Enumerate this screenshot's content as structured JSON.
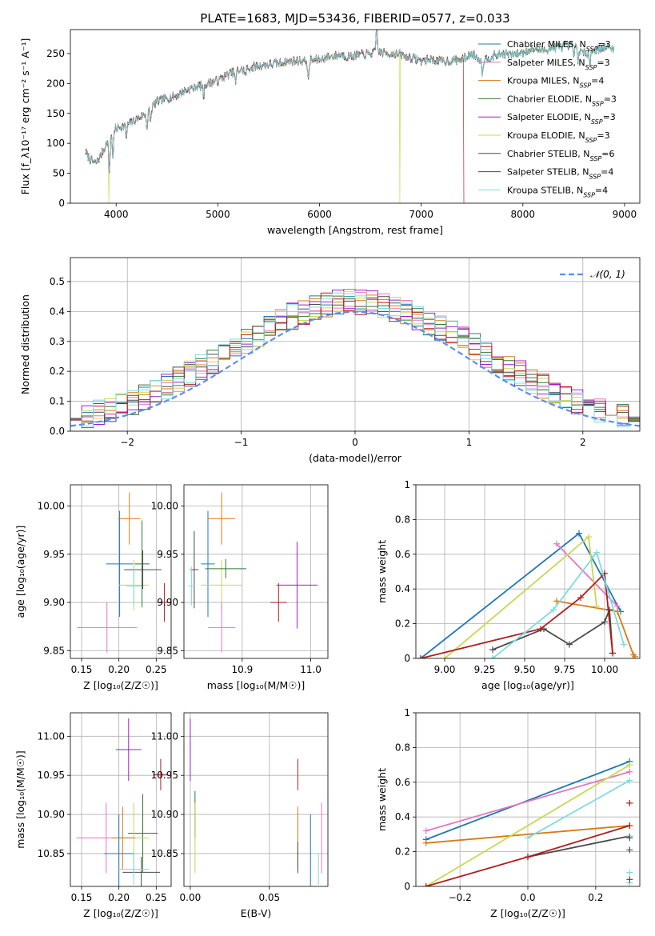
{
  "title": "PLATE=1683, MJD=53436, FIBERID=0577, z=0.033",
  "colors": {
    "Chabrier MILES": "#1f77b4",
    "Salpeter MILES": "#e377c2",
    "Kroupa MILES": "#d97a15",
    "Chabrier ELODIE": "#2d7a30",
    "Salpeter ELODIE": "#9b1fc7",
    "Kroupa ELODIE": "#c8d850",
    "Chabrier STELIB": "#4a4a4a",
    "Salpeter STELIB": "#b01e1e",
    "Kroupa STELIB": "#7fdbe0"
  },
  "chart_data": [
    {
      "id": "spectrum",
      "type": "line",
      "xlabel": "wavelength [Angstrom, rest frame]",
      "ylabel": "Flux [f_λ10⁻¹⁷ erg cm⁻² s⁻¹ A⁻¹]",
      "xlim": [
        3550,
        9150
      ],
      "ylim": [
        0,
        290
      ],
      "xticks": [
        4000,
        5000,
        6000,
        7000,
        8000,
        9000
      ],
      "yticks": [
        0,
        50,
        100,
        150,
        200,
        250
      ],
      "grid": false,
      "legend_position": "top-right",
      "series": [
        {
          "name": "Chabrier MILES, N_SSP=3"
        },
        {
          "name": "Salpeter MILES, N_SSP=3"
        },
        {
          "name": "Kroupa MILES, N_SSP=4"
        },
        {
          "name": "Chabrier ELODIE, N_SSP=3"
        },
        {
          "name": "Salpeter ELODIE, N_SSP=3"
        },
        {
          "name": "Kroupa ELODIE, N_SSP=3"
        },
        {
          "name": "Chabrier STELIB, N_SSP=6"
        },
        {
          "name": "Salpeter STELIB, N_SSP=4"
        },
        {
          "name": "Kroupa STELIB, N_SSP=4"
        }
      ],
      "continuum": [
        [
          3700,
          85
        ],
        [
          3750,
          72
        ],
        [
          3800,
          66
        ],
        [
          3850,
          80
        ],
        [
          3900,
          98
        ],
        [
          3950,
          115
        ],
        [
          4000,
          125
        ],
        [
          4100,
          130
        ],
        [
          4200,
          140
        ],
        [
          4300,
          150
        ],
        [
          4400,
          170
        ],
        [
          4500,
          175
        ],
        [
          4600,
          180
        ],
        [
          4700,
          190
        ],
        [
          4800,
          195
        ],
        [
          4900,
          200
        ],
        [
          5000,
          205
        ],
        [
          5100,
          215
        ],
        [
          5200,
          222
        ],
        [
          5300,
          225
        ],
        [
          5400,
          230
        ],
        [
          5500,
          232
        ],
        [
          5600,
          234
        ],
        [
          5700,
          237
        ],
        [
          5800,
          238
        ],
        [
          5900,
          238
        ],
        [
          6000,
          240
        ],
        [
          6100,
          245
        ],
        [
          6200,
          248
        ],
        [
          6300,
          245
        ],
        [
          6400,
          248
        ],
        [
          6500,
          250
        ],
        [
          6600,
          252
        ],
        [
          6700,
          250
        ],
        [
          6800,
          248
        ],
        [
          6900,
          243
        ],
        [
          7000,
          238
        ],
        [
          7100,
          240
        ],
        [
          7200,
          237
        ],
        [
          7300,
          238
        ],
        [
          7400,
          240
        ],
        [
          7500,
          250
        ],
        [
          7600,
          238
        ],
        [
          7700,
          245
        ],
        [
          7800,
          250
        ],
        [
          7900,
          248
        ],
        [
          8000,
          252
        ],
        [
          8100,
          258
        ],
        [
          8200,
          255
        ],
        [
          8300,
          260
        ],
        [
          8400,
          262
        ],
        [
          8500,
          263
        ],
        [
          8600,
          250
        ],
        [
          8700,
          255
        ],
        [
          8800,
          260
        ],
        [
          8900,
          258
        ]
      ],
      "absorption_lines": [
        [
          3933,
          60
        ],
        [
          3968,
          40
        ],
        [
          4101,
          20
        ],
        [
          4304,
          25
        ],
        [
          4340,
          20
        ],
        [
          4861,
          20
        ],
        [
          5175,
          20
        ],
        [
          5270,
          12
        ],
        [
          5890,
          35
        ],
        [
          6563,
          -55
        ],
        [
          7600,
          20
        ],
        [
          8500,
          15
        ],
        [
          8542,
          18
        ],
        [
          8662,
          18
        ]
      ],
      "cutoffs": [
        {
          "series": "Kroupa ELODIE, N_SSP=3",
          "x": 3930
        },
        {
          "series": "Kroupa ELODIE, N_SSP=3",
          "x": 6790
        },
        {
          "series": "Salpeter STELIB, N_SSP=4",
          "x": 7420
        }
      ]
    },
    {
      "id": "residuals",
      "type": "histogram",
      "xlabel": "(data-model)/error",
      "ylabel": "Normed distribution",
      "xlim": [
        -2.5,
        2.5
      ],
      "ylim": [
        0,
        0.58
      ],
      "xticks": [
        -2,
        -1,
        0,
        1,
        2
      ],
      "yticks": [
        0.0,
        0.1,
        0.2,
        0.3,
        0.4,
        0.5
      ],
      "grid": true,
      "legend_position": "top-right",
      "reference_curve": {
        "name": "𝒩(0, 1)",
        "mean": 0,
        "sigma": 1,
        "style": "dashed",
        "color": "#5b8def"
      },
      "bin_width": 0.1
    },
    {
      "id": "z_vs_age",
      "type": "errorbar",
      "xlabel": "Z [log₁₀(Z/Z☉)]",
      "ylabel": "age  [log₁₀(age/yr)]",
      "xlim": [
        0.135,
        0.27
      ],
      "ylim": [
        9.842,
        10.022
      ],
      "xticks": [
        0.15,
        0.2,
        0.25
      ],
      "xtick_labels": [
        "0.15",
        "0.20",
        "0.25"
      ],
      "yticks": [
        9.85,
        9.9,
        9.95,
        10.0
      ],
      "ytick_labels": [
        "9.85",
        "9.90",
        "9.95",
        "10.00"
      ],
      "grid": true,
      "points": [
        {
          "series": "Chabrier MILES",
          "x": 0.201,
          "y": 9.94,
          "xerr": 0.018,
          "yerr": 0.055
        },
        {
          "series": "Kroupa MILES",
          "x": 0.214,
          "y": 9.987,
          "xerr": 0.015,
          "yerr": 0.027
        },
        {
          "series": "Salpeter MILES",
          "x": 0.184,
          "y": 9.874,
          "xerr": 0.04,
          "yerr": 0.026
        },
        {
          "series": "Kroupa ELODIE",
          "x": 0.22,
          "y": 9.918,
          "xerr": 0.02,
          "yerr": 0.026
        },
        {
          "series": "Chabrier ELODIE",
          "x": 0.231,
          "y": 9.94,
          "xerr": 0.01,
          "yerr": 0.045
        },
        {
          "series": "Chabrier STELIB",
          "x": 0.232,
          "y": 9.934,
          "xerr": 0.025,
          "yerr": 0.02
        },
        {
          "series": "Salpeter STELIB",
          "x": 0.261,
          "y": 9.9,
          "xerr": 0.01,
          "yerr": 0.02
        },
        {
          "series": "Kroupa STELIB",
          "x": 0.22,
          "y": 9.917,
          "xerr": 0.01,
          "yerr": 0.02
        }
      ]
    },
    {
      "id": "mass_vs_age",
      "type": "errorbar",
      "xlabel": "mass [log₁₀(M/M☉)]",
      "ylabel": "",
      "xlim": [
        10.815,
        11.025
      ],
      "ylim": [
        9.842,
        10.022
      ],
      "xticks": [
        10.9,
        11.0
      ],
      "xtick_labels": [
        "10.9",
        "11.0"
      ],
      "yticks": [
        9.85,
        9.9,
        9.95,
        10.0
      ],
      "ytick_labels": [
        "9.85",
        "9.90",
        "9.95",
        "10.00"
      ],
      "grid": true,
      "points": [
        {
          "series": "Chabrier STELIB",
          "x": 10.83,
          "y": 9.934,
          "xerr": 0.006,
          "yerr": 0.04
        },
        {
          "series": "Chabrier MILES",
          "x": 10.85,
          "y": 9.94,
          "xerr": 0.01,
          "yerr": 0.055
        },
        {
          "series": "Kroupa MILES",
          "x": 10.87,
          "y": 9.987,
          "xerr": 0.02,
          "yerr": 0.027
        },
        {
          "series": "Kroupa ELODIE",
          "x": 10.87,
          "y": 9.918,
          "xerr": 0.03,
          "yerr": 0.026
        },
        {
          "series": "Chabrier ELODIE",
          "x": 10.876,
          "y": 9.935,
          "xerr": 0.03,
          "yerr": 0.01
        },
        {
          "series": "Salpeter MILES",
          "x": 10.87,
          "y": 9.874,
          "xerr": 0.02,
          "yerr": 0.026
        },
        {
          "series": "Salpeter STELIB",
          "x": 10.953,
          "y": 9.9,
          "xerr": 0.012,
          "yerr": 0.02
        },
        {
          "series": "Salpeter ELODIE",
          "x": 10.98,
          "y": 9.918,
          "xerr": 0.03,
          "yerr": 0.045
        },
        {
          "series": "Kroupa STELIB",
          "x": 10.826,
          "y": 9.917,
          "xerr": 0.005,
          "yerr": 0.02
        }
      ]
    },
    {
      "id": "age_weights",
      "type": "line",
      "xlabel": "age  [log₁₀(age/yr)]",
      "ylabel": "mass weight",
      "xlim": [
        8.82,
        10.22
      ],
      "ylim": [
        0.0,
        1.0
      ],
      "xticks": [
        9.0,
        9.25,
        9.5,
        9.75,
        10.0
      ],
      "xtick_labels": [
        "9.00",
        "9.25",
        "9.50",
        "9.75",
        "10.00"
      ],
      "yticks": [
        0.0,
        0.2,
        0.4,
        0.6,
        0.8,
        1.0
      ],
      "grid": true,
      "series": [
        {
          "name": "Chabrier MILES",
          "x": [
            8.85,
            9.84,
            10.1
          ],
          "y": [
            0.0,
            0.72,
            0.27
          ]
        },
        {
          "name": "Salpeter MILES",
          "x": [
            9.7,
            10.08
          ],
          "y": [
            0.66,
            0.3
          ]
        },
        {
          "name": "Kroupa MILES",
          "x": [
            9.7,
            10.08,
            10.18,
            10.19
          ],
          "y": [
            0.33,
            0.27,
            0.02,
            0.01
          ]
        },
        {
          "name": "Kroupa ELODIE",
          "x": [
            9.0,
            9.9,
            9.95
          ],
          "y": [
            0.0,
            0.7,
            0.3
          ]
        },
        {
          "name": "Chabrier STELIB",
          "x": [
            9.3,
            9.62,
            9.78,
            10.0,
            10.03,
            10.05
          ],
          "y": [
            0.05,
            0.17,
            0.08,
            0.21,
            0.28,
            0.03
          ]
        },
        {
          "name": "Salpeter STELIB",
          "x": [
            8.85,
            9.6,
            9.85,
            10.0,
            10.05
          ],
          "y": [
            0.0,
            0.17,
            0.35,
            0.49,
            0.03
          ]
        },
        {
          "name": "Kroupa STELIB",
          "x": [
            9.3,
            9.68,
            9.95,
            10.12
          ],
          "y": [
            0.0,
            0.28,
            0.61,
            0.08
          ]
        }
      ]
    },
    {
      "id": "z_vs_mass",
      "type": "errorbar",
      "xlabel": "Z [log₁₀(Z/Z☉)]",
      "ylabel": "mass [log₁₀(M/M☉)]",
      "xlim": [
        0.135,
        0.27
      ],
      "ylim": [
        10.808,
        11.03
      ],
      "xticks": [
        0.15,
        0.2,
        0.25
      ],
      "xtick_labels": [
        "0.15",
        "0.20",
        "0.25"
      ],
      "yticks": [
        10.85,
        10.9,
        10.95,
        11.0
      ],
      "ytick_labels": [
        "10.85",
        "10.90",
        "10.95",
        "11.00"
      ],
      "grid": true,
      "points": [
        {
          "series": "Salpeter ELODIE",
          "x": 0.213,
          "y": 10.983,
          "xerr": 0.017,
          "yerr": 0.04
        },
        {
          "series": "Salpeter STELIB",
          "x": 0.256,
          "y": 10.951,
          "xerr": 0.01,
          "yerr": 0.02
        },
        {
          "series": "Chabrier ELODIE",
          "x": 0.232,
          "y": 10.876,
          "xerr": 0.02,
          "yerr": 0.05
        },
        {
          "series": "Kroupa ELODIE",
          "x": 0.22,
          "y": 10.87,
          "xerr": 0.02,
          "yerr": 0.045
        },
        {
          "series": "Salpeter MILES",
          "x": 0.183,
          "y": 10.87,
          "xerr": 0.04,
          "yerr": 0.045
        },
        {
          "series": "Kroupa MILES",
          "x": 0.205,
          "y": 10.87,
          "xerr": 0.015,
          "yerr": 0.04
        },
        {
          "series": "Chabrier MILES",
          "x": 0.2,
          "y": 10.85,
          "xerr": 0.02,
          "yerr": 0.05
        },
        {
          "series": "Chabrier STELIB",
          "x": 0.23,
          "y": 10.826,
          "xerr": 0.025,
          "yerr": 0.02
        },
        {
          "series": "Kroupa STELIB",
          "x": 0.22,
          "y": 10.83,
          "xerr": 0.02,
          "yerr": 0.02
        }
      ]
    },
    {
      "id": "ebv_vs_mass",
      "type": "errorbar",
      "xlabel": "E(B-V)",
      "ylabel": "",
      "xlim": [
        -0.004,
        0.087
      ],
      "ylim": [
        10.808,
        11.03
      ],
      "xticks": [
        0.0,
        0.05
      ],
      "xtick_labels": [
        "0.00",
        "0.05"
      ],
      "yticks": [
        10.85,
        10.9,
        10.95,
        11.0
      ],
      "ytick_labels": [
        "10.85",
        "10.90",
        "10.95",
        "11.00"
      ],
      "grid": true,
      "points": [
        {
          "series": "Salpeter ELODIE",
          "x": 0.0,
          "y": 10.983,
          "xerr": 0,
          "yerr": 0.04
        },
        {
          "series": "Chabrier ELODIE",
          "x": 0.003,
          "y": 10.9,
          "xerr": 0,
          "yerr": 0.03
        },
        {
          "series": "Kroupa ELODIE",
          "x": 0.003,
          "y": 10.87,
          "xerr": 0,
          "yerr": 0.045
        },
        {
          "series": "Salpeter STELIB",
          "x": 0.068,
          "y": 10.951,
          "xerr": 0,
          "yerr": 0.02
        },
        {
          "series": "Kroupa MILES",
          "x": 0.068,
          "y": 10.87,
          "xerr": 0,
          "yerr": 0.04
        },
        {
          "series": "Chabrier STELIB",
          "x": 0.068,
          "y": 10.845,
          "xerr": 0,
          "yerr": 0.02
        },
        {
          "series": "Chabrier MILES",
          "x": 0.076,
          "y": 10.85,
          "xerr": 0,
          "yerr": 0.05
        },
        {
          "series": "Kroupa STELIB",
          "x": 0.081,
          "y": 10.83,
          "xerr": 0,
          "yerr": 0.02
        },
        {
          "series": "Salpeter MILES",
          "x": 0.083,
          "y": 10.87,
          "xerr": 0,
          "yerr": 0.045
        }
      ]
    },
    {
      "id": "z_weights",
      "type": "line",
      "xlabel": "Z [log₁₀(Z/Z☉)]",
      "ylabel": "mass weight",
      "xlim": [
        -0.33,
        0.33
      ],
      "ylim": [
        0.0,
        1.0
      ],
      "xticks": [
        -0.2,
        0.0,
        0.2
      ],
      "xtick_labels": [
        "−0.2",
        "0.0",
        "0.2"
      ],
      "yticks": [
        0.0,
        0.2,
        0.4,
        0.6,
        0.8,
        1.0
      ],
      "grid": true,
      "series": [
        {
          "name": "Chabrier MILES",
          "x": [
            -0.3,
            0.3
          ],
          "y": [
            0.27,
            0.72
          ]
        },
        {
          "name": "Salpeter MILES",
          "x": [
            -0.3,
            0.3
          ],
          "y": [
            0.32,
            0.66
          ]
        },
        {
          "name": "Kroupa MILES",
          "x": [
            -0.3,
            0.3
          ],
          "y": [
            0.25,
            0.35
          ]
        },
        {
          "name": "Kroupa ELODIE",
          "x": [
            -0.3,
            0.3
          ],
          "y": [
            0.0,
            0.7
          ]
        },
        {
          "name": "Chabrier STELIB",
          "x": [
            0.0,
            0.3
          ],
          "y": [
            0.17,
            0.29
          ]
        },
        {
          "name": "Salpeter STELIB",
          "x": [
            -0.3,
            0.0,
            0.3
          ],
          "y": [
            0.0,
            0.17,
            0.35
          ]
        },
        {
          "name": "Kroupa STELIB",
          "x": [
            0.0,
            0.3
          ],
          "y": [
            0.28,
            0.61
          ]
        }
      ],
      "stack_marks": [
        {
          "series": "Kroupa STELIB",
          "x": 0.3,
          "y": [
            0.02,
            0.08,
            0.29
          ]
        },
        {
          "series": "Chabrier STELIB",
          "x": 0.3,
          "y": [
            0.04,
            0.21,
            0.28
          ]
        },
        {
          "series": "Salpeter STELIB",
          "x": 0.3,
          "y": [
            0.48
          ]
        }
      ]
    }
  ]
}
